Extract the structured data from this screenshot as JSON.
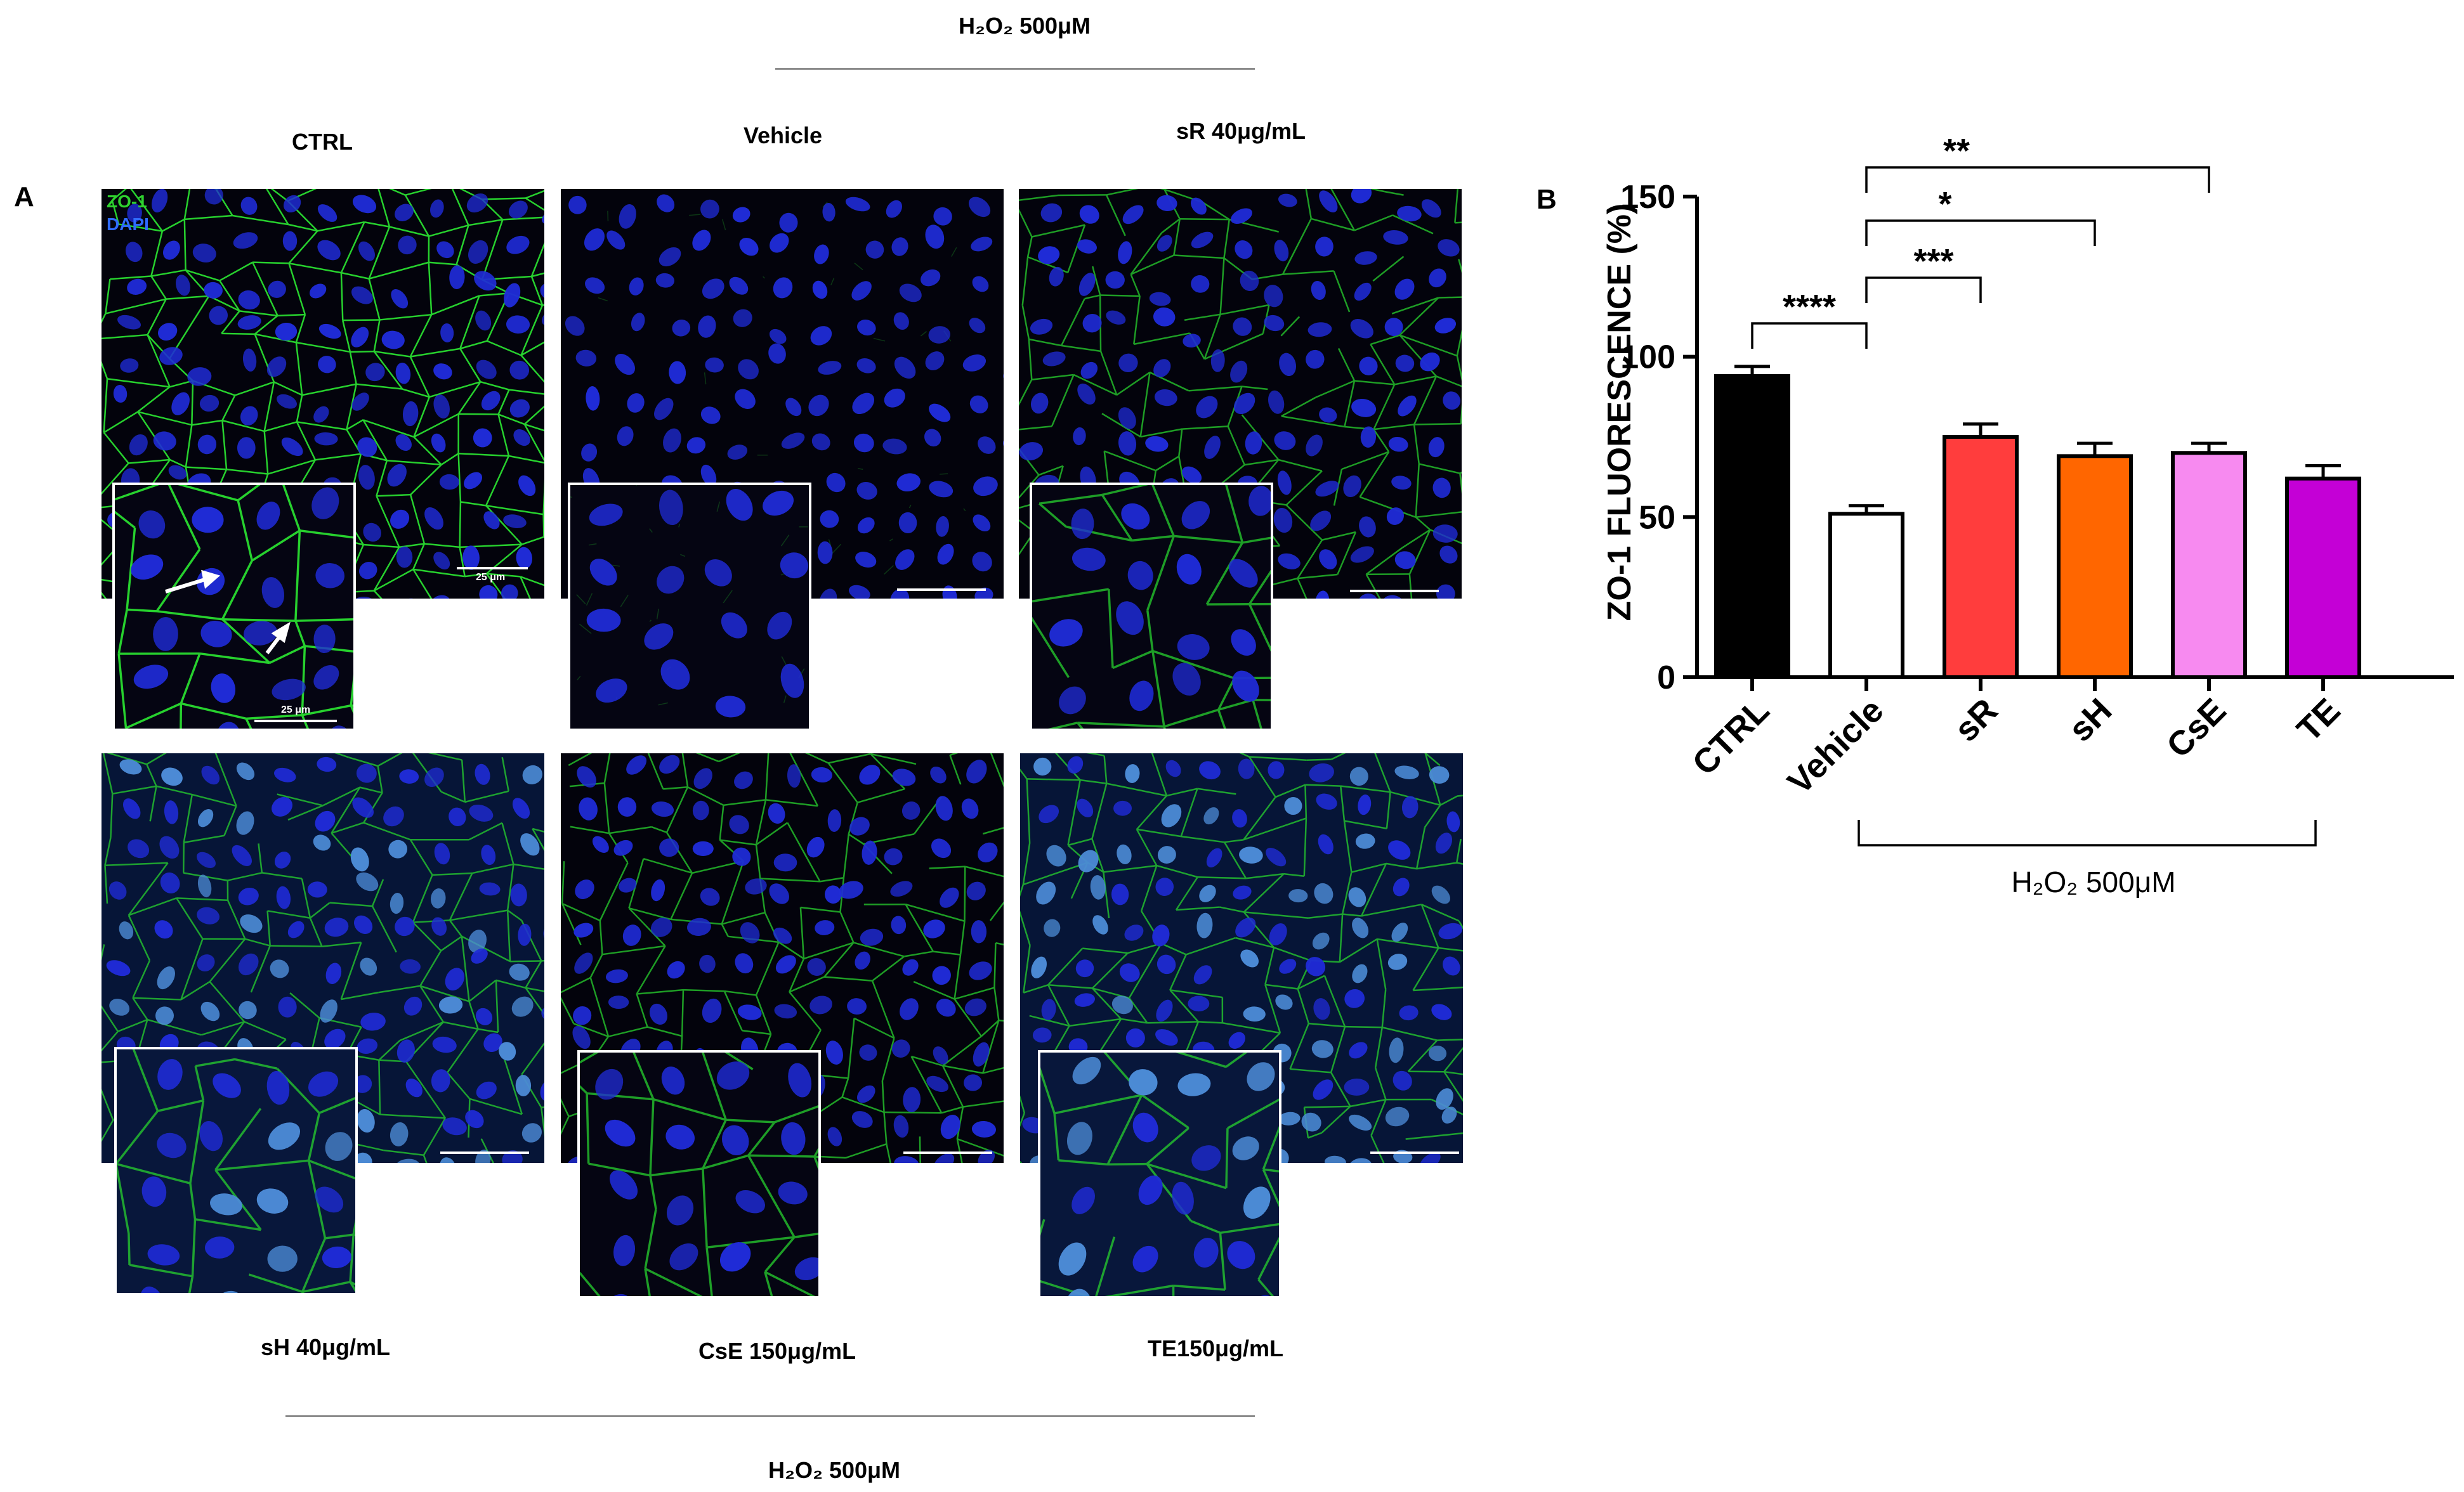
{
  "figure": {
    "panel_a_letter": "A",
    "panel_b_letter": "B",
    "top_group_label": "H₂O₂ 500μM",
    "bottom_group_label": "H₂O₂ 500μM",
    "channel_labels": {
      "zo1": "ZO-1",
      "dapi": "DAPI"
    },
    "scale_label": "25 μm",
    "panels": [
      {
        "label": "CTRL",
        "pattern": "ctrl"
      },
      {
        "label": "Vehicle",
        "pattern": "vehicle"
      },
      {
        "label": "sR 40μg/mL",
        "pattern": "dense"
      },
      {
        "label": "sH 40μg/mL",
        "pattern": "diffuse"
      },
      {
        "label": "CsE 150μg/mL",
        "pattern": "dense"
      },
      {
        "label": "TE150μg/mL",
        "pattern": "diffuse"
      }
    ],
    "colors": {
      "zo1_green": "#27d12e",
      "dapi_blue": "#1f2bd6",
      "background": "#03030c"
    }
  },
  "chart_data": {
    "type": "bar",
    "ylabel": "ZO-1 FLUORESCENCE (%)",
    "xlabel": "",
    "ylim": [
      0,
      150
    ],
    "yticks": [
      0,
      50,
      100,
      150
    ],
    "categories": [
      "CTRL",
      "Vehicle",
      "sR",
      "sH",
      "CsE",
      "TE"
    ],
    "values": [
      94,
      51,
      75,
      69,
      70,
      62
    ],
    "errors": [
      3,
      2.5,
      4,
      4,
      3,
      4
    ],
    "bar_colors": [
      "#000000",
      "#ffffff",
      "#ff3d3d",
      "#ff6600",
      "#f78af0",
      "#c400d6"
    ],
    "bracket_label": "H₂O₂ 500μM",
    "significance": [
      {
        "from": "CTRL",
        "to": "Vehicle",
        "label": "****"
      },
      {
        "from": "Vehicle",
        "to": "sR",
        "label": "***"
      },
      {
        "from": "Vehicle",
        "to": "sH",
        "label": "*"
      },
      {
        "from": "Vehicle",
        "to": "CsE",
        "label": "**"
      }
    ]
  }
}
